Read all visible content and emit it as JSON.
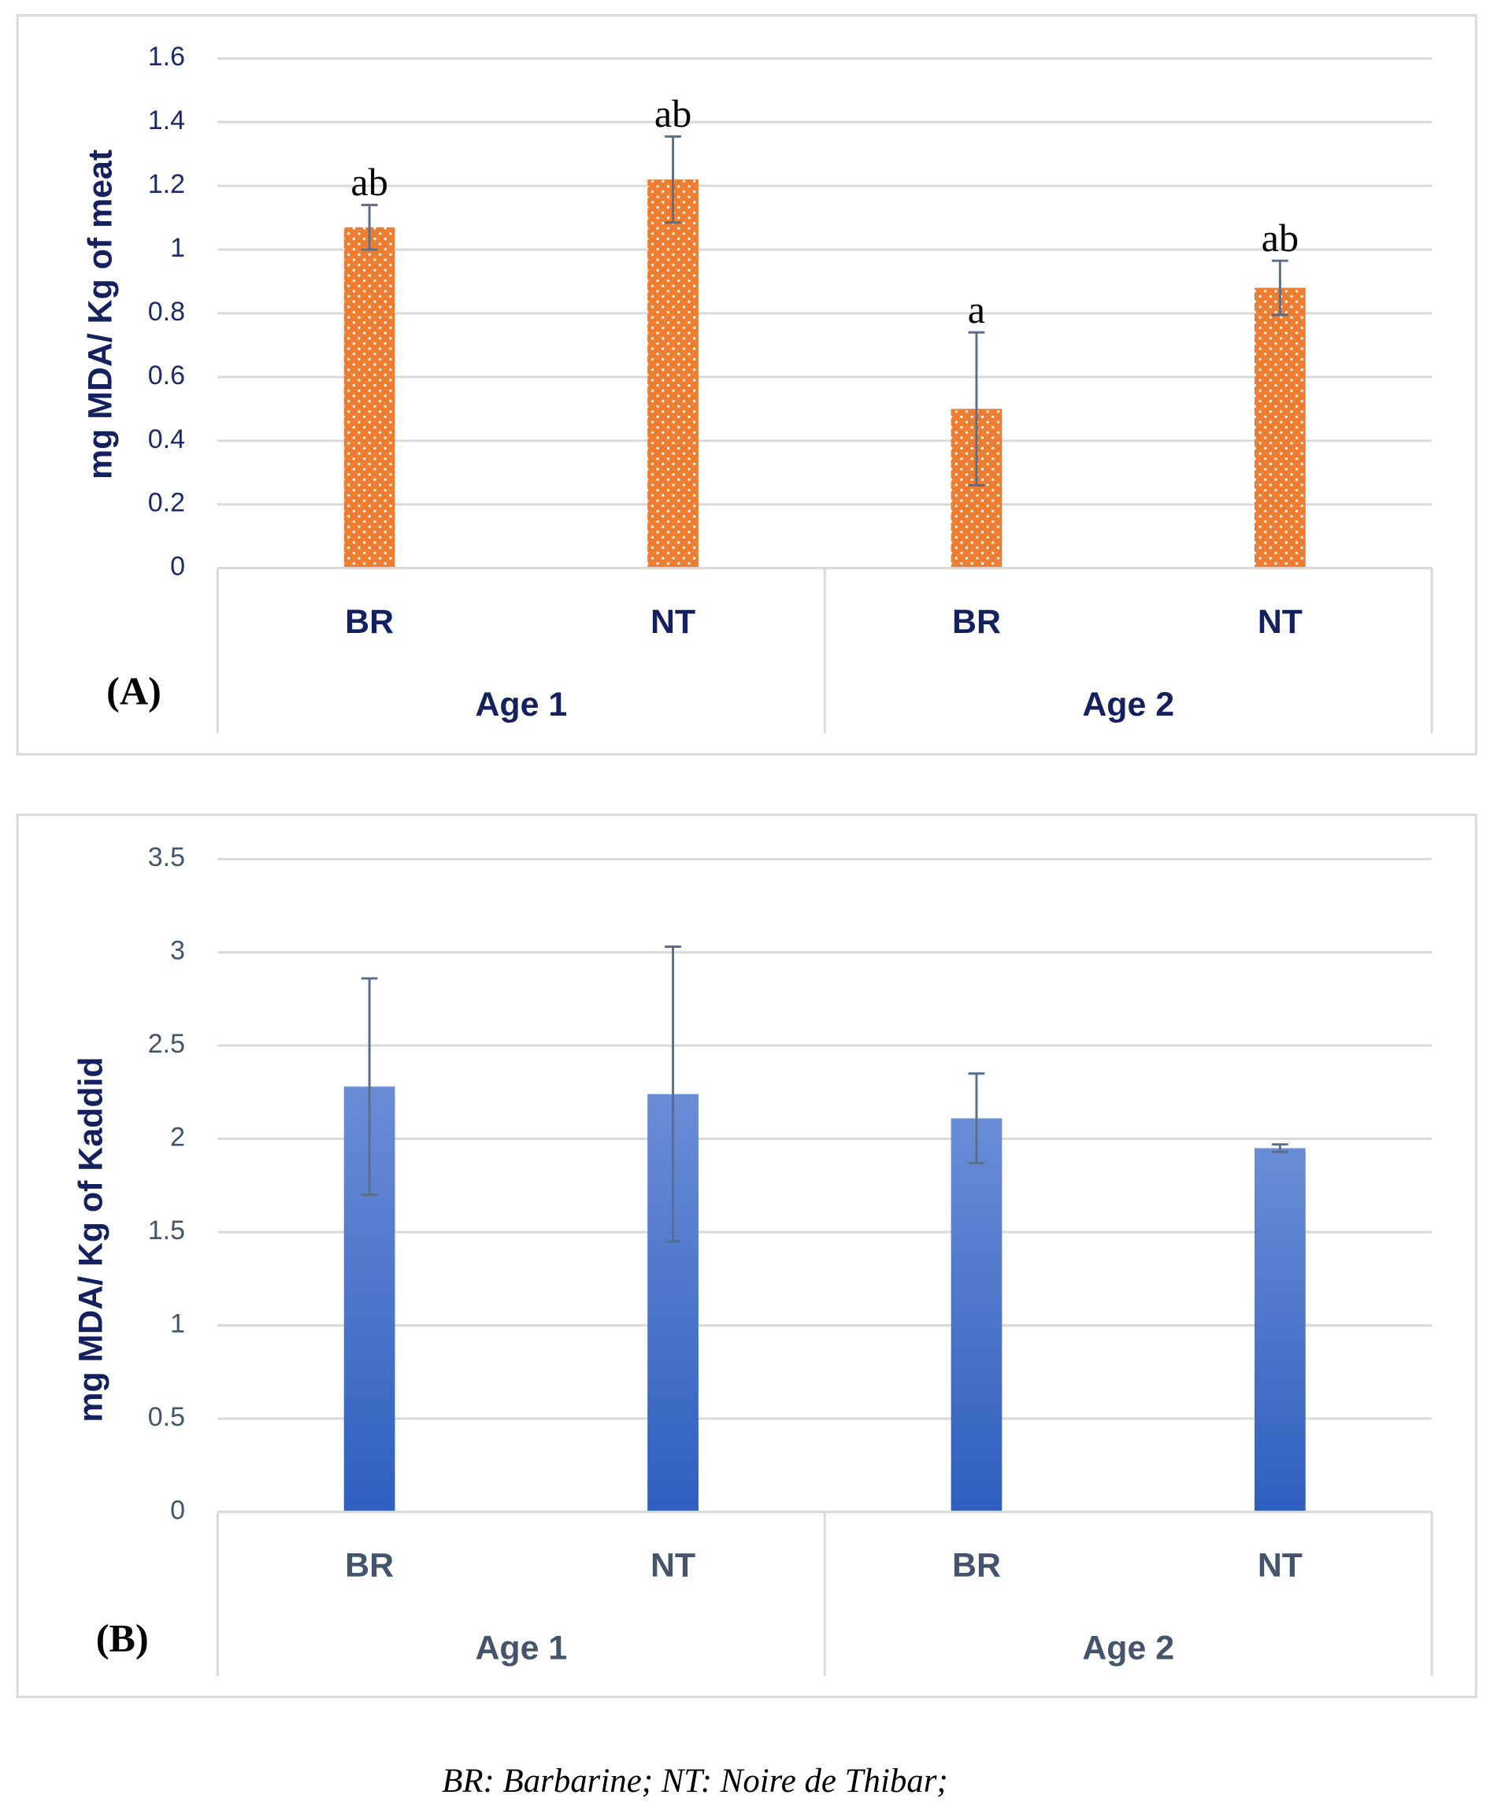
{
  "chart_data": [
    {
      "type": "bar",
      "panel_label": "(A)",
      "y_label": "mg MDA/ Kg  of meat",
      "categories": [
        "BR",
        "NT",
        "BR",
        "NT"
      ],
      "groups": [
        "Age 1",
        "Age 2"
      ],
      "values": [
        1.07,
        1.22,
        0.5,
        0.88
      ],
      "errors": [
        0.07,
        0.135,
        0.24,
        0.085
      ],
      "annotations": [
        "ab",
        "ab",
        "a",
        "ab"
      ],
      "color": "#ED7D31",
      "ylim": [
        0,
        1.6
      ],
      "yticks": [
        0,
        0.2,
        0.4,
        0.6,
        0.8,
        1,
        1.2,
        1.4,
        1.6
      ],
      "grid": true
    },
    {
      "type": "bar",
      "panel_label": "(B)",
      "y_label": "mg MDA/ Kg  of Kaddid",
      "categories": [
        "BR",
        "NT",
        "BR",
        "NT"
      ],
      "groups": [
        "Age 1",
        "Age 2"
      ],
      "values": [
        2.28,
        2.24,
        2.11,
        1.95
      ],
      "errors": [
        0.58,
        0.79,
        0.24,
        0.02
      ],
      "color": "#4472C4",
      "ylim": [
        0,
        3.5
      ],
      "yticks": [
        0,
        0.5,
        1,
        1.5,
        2,
        2.5,
        3,
        3.5
      ],
      "grid": true
    }
  ],
  "caption": "BR: Barbarine; NT: Noire de Thibar;"
}
